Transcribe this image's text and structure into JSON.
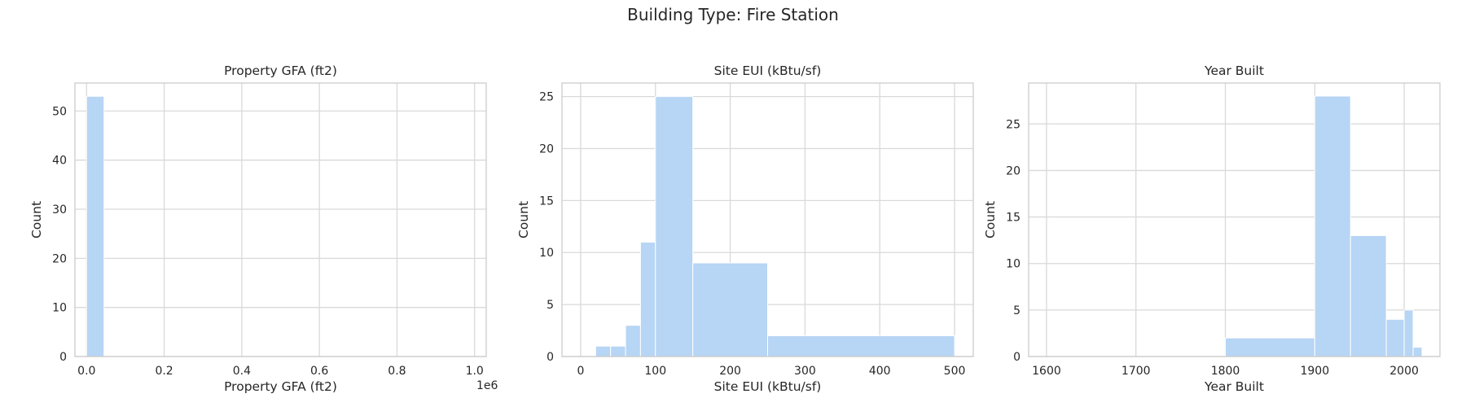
{
  "figure": {
    "suptitle": "Building Type: Fire Station"
  },
  "colors": {
    "bar": "#b7d5f4",
    "grid": "#d9d9d9",
    "spine": "#cccccc",
    "text": "#262626"
  },
  "chart_data": [
    {
      "type": "bar",
      "title": "Property GFA (ft2)",
      "xlabel": "Property GFA (ft2)",
      "ylabel": "Count",
      "xlim": [
        -30000,
        1030000
      ],
      "ylim": [
        0,
        55.7
      ],
      "xticks": [
        0,
        200000,
        400000,
        600000,
        800000,
        1000000
      ],
      "xtick_labels": [
        "0.0",
        "0.2",
        "0.4",
        "0.6",
        "0.8",
        "1.0"
      ],
      "x_offset_text": "1e6",
      "yticks": [
        0,
        10,
        20,
        30,
        40,
        50
      ],
      "bins": [
        {
          "x0": 0,
          "x1": 45000,
          "count": 53
        }
      ]
    },
    {
      "type": "bar",
      "title": "Site EUI (kBtu/sf)",
      "xlabel": "Site EUI (kBtu/sf)",
      "ylabel": "Count",
      "xlim": [
        -25,
        525
      ],
      "ylim": [
        0,
        26.3
      ],
      "xticks": [
        0,
        100,
        200,
        300,
        400,
        500
      ],
      "xtick_labels": [
        "0",
        "100",
        "200",
        "300",
        "400",
        "500"
      ],
      "yticks": [
        0,
        5,
        10,
        15,
        20,
        25
      ],
      "bins": [
        {
          "x0": 0,
          "x1": 20,
          "count": 0
        },
        {
          "x0": 20,
          "x1": 40,
          "count": 1
        },
        {
          "x0": 40,
          "x1": 60,
          "count": 1
        },
        {
          "x0": 60,
          "x1": 80,
          "count": 3
        },
        {
          "x0": 80,
          "x1": 100,
          "count": 11
        },
        {
          "x0": 100,
          "x1": 150,
          "count": 25
        },
        {
          "x0": 150,
          "x1": 250,
          "count": 9
        },
        {
          "x0": 250,
          "x1": 500,
          "count": 2
        }
      ]
    },
    {
      "type": "bar",
      "title": "Year Built",
      "xlabel": "Year Built",
      "ylabel": "Count",
      "xlim": [
        1580,
        2040
      ],
      "ylim": [
        0,
        29.4
      ],
      "xticks": [
        1600,
        1700,
        1800,
        1900,
        2000
      ],
      "xtick_labels": [
        "1600",
        "1700",
        "1800",
        "1900",
        "2000"
      ],
      "yticks": [
        0,
        5,
        10,
        15,
        20,
        25
      ],
      "bins": [
        {
          "x0": 1600,
          "x1": 1800,
          "count": 0
        },
        {
          "x0": 1800,
          "x1": 1900,
          "count": 2
        },
        {
          "x0": 1900,
          "x1": 1940,
          "count": 28
        },
        {
          "x0": 1940,
          "x1": 1980,
          "count": 13
        },
        {
          "x0": 1980,
          "x1": 2000,
          "count": 4
        },
        {
          "x0": 2000,
          "x1": 2010,
          "count": 5
        },
        {
          "x0": 2010,
          "x1": 2020,
          "count": 1
        }
      ]
    }
  ]
}
